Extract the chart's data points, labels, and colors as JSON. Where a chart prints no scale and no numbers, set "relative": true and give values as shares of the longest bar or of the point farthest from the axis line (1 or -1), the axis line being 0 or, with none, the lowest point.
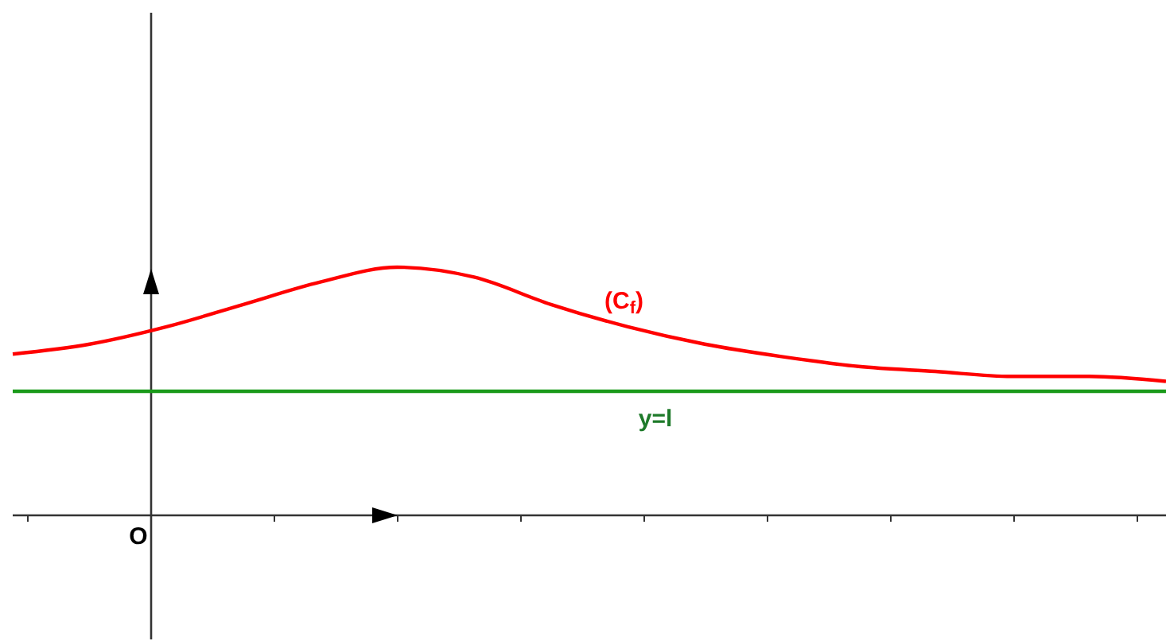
{
  "chart_data": {
    "type": "line",
    "relative": true,
    "categories": [
      null,
      null,
      null,
      null,
      null,
      null,
      null,
      null,
      null,
      null,
      null,
      null,
      null,
      null,
      null,
      null
    ],
    "series": [
      {
        "name": "(C$_{f}$)",
        "color": "#ff0000",
        "values": [
          0.65,
          0.69,
          0.76,
          0.85,
          0.94,
          1,
          0.96,
          0.85,
          0.76,
          0.69,
          0.64,
          0.6,
          0.58,
          0.56,
          0.56,
          0.54
        ]
      }
    ],
    "ref_lines": [
      {
        "axis": "y",
        "value": 0.5,
        "label": "y=l",
        "color": "#1a9a1a"
      }
    ],
    "annotations": [
      "O"
    ]
  }
}
